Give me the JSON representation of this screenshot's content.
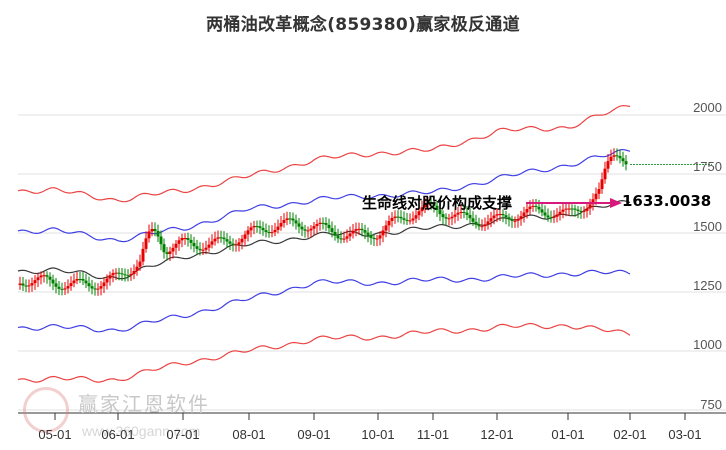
{
  "chart_data": {
    "type": "candlestick-with-channels",
    "title": "两桶油改革概念(859380)赢家极反通道",
    "xlabel": "",
    "ylabel": "",
    "ylim": [
      750,
      2050
    ],
    "grid": true,
    "y_ticks": [
      2000,
      1750,
      1500,
      1250,
      1000,
      750
    ],
    "x_ticks": [
      "05-01",
      "06-01",
      "07-01",
      "08-01",
      "09-01",
      "10-01",
      "11-01",
      "12-01",
      "01-01",
      "02-01",
      "03-01"
    ],
    "series": [
      {
        "name": "upper-red-band",
        "color": "#e83030",
        "values_by_month": {
          "05-01": 1680,
          "06-01": 1640,
          "07-01": 1680,
          "08-01": 1740,
          "09-01": 1810,
          "10-01": 1840,
          "11-01": 1850,
          "12-01": 1930,
          "01-01": 1950,
          "02-01": 2040
        }
      },
      {
        "name": "upper-blue-band",
        "color": "#2a2ae0",
        "values_by_month": {
          "05-01": 1510,
          "06-01": 1470,
          "07-01": 1520,
          "08-01": 1600,
          "09-01": 1640,
          "10-01": 1660,
          "11-01": 1670,
          "12-01": 1730,
          "01-01": 1790,
          "02-01": 1850
        }
      },
      {
        "name": "lifeline-black",
        "color": "#222222",
        "values_by_month": {
          "05-01": 1340,
          "06-01": 1310,
          "07-01": 1400,
          "08-01": 1450,
          "09-01": 1490,
          "10-01": 1500,
          "11-01": 1520,
          "12-01": 1550,
          "01-01": 1580,
          "02-01": 1633
        }
      },
      {
        "name": "lower-blue-band",
        "color": "#2a2ae0",
        "values_by_month": {
          "05-01": 1100,
          "06-01": 1090,
          "07-01": 1150,
          "08-01": 1220,
          "09-01": 1290,
          "10-01": 1290,
          "11-01": 1300,
          "12-01": 1310,
          "01-01": 1330,
          "02-01": 1330
        }
      },
      {
        "name": "lower-red-band",
        "color": "#e83030",
        "values_by_month": {
          "05-01": 880,
          "06-01": 880,
          "07-01": 950,
          "08-01": 1000,
          "09-01": 1050,
          "10-01": 1060,
          "11-01": 1080,
          "12-01": 1100,
          "01-01": 1110,
          "02-01": 1070
        }
      },
      {
        "name": "price-close-approx",
        "values_by_month": {
          "05-01": 1280,
          "06-01": 1320,
          "07-01": 1450,
          "08-01": 1500,
          "09-01": 1530,
          "10-01": 1500,
          "11-01": 1600,
          "12-01": 1560,
          "01-01": 1580,
          "02-01": 1790
        }
      }
    ],
    "annotations": [
      {
        "text": "生命线对股价构成支撑",
        "arrow_to": 1633.0038
      },
      {
        "text": "1633.0038"
      }
    ],
    "last_price_line": 1790,
    "colors": {
      "up": "#e60000",
      "down": "#008000",
      "grid": "#e0e0e0",
      "arrow": "#d6197a",
      "last_price_line": "#2ea043"
    }
  },
  "title": "两桶油改革概念(859380)赢家极反通道",
  "annotation": {
    "text": "生命线对股价构成支撑",
    "value": "1633.0038"
  },
  "y_axis": {
    "labels": [
      "2000",
      "1750",
      "1500",
      "1250",
      "1000",
      "750"
    ]
  },
  "x_axis": {
    "labels": [
      "05-01",
      "06-01",
      "07-01",
      "08-01",
      "09-01",
      "10-01",
      "11-01",
      "12-01",
      "01-01",
      "02-01",
      "03-01"
    ]
  },
  "watermark": {
    "brand": "赢家江恩软件",
    "url": "www.360gann.com"
  }
}
